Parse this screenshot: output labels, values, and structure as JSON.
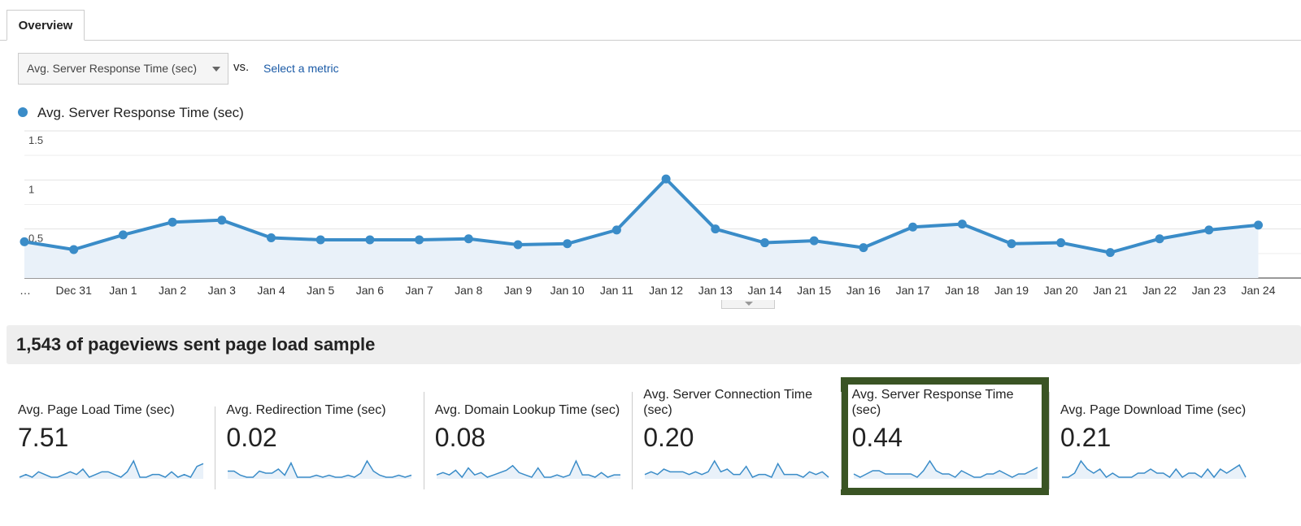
{
  "tabs": [
    "Overview"
  ],
  "metric_selector": {
    "selected": "Avg. Server Response Time (sec)",
    "vs": "vs.",
    "link": "Select a metric"
  },
  "chart_data": {
    "type": "line",
    "categories": [
      "…",
      "Dec 31",
      "Jan 1",
      "Jan 2",
      "Jan 3",
      "Jan 4",
      "Jan 5",
      "Jan 6",
      "Jan 7",
      "Jan 8",
      "Jan 9",
      "Jan 10",
      "Jan 11",
      "Jan 12",
      "Jan 13",
      "Jan 14",
      "Jan 15",
      "Jan 16",
      "Jan 17",
      "Jan 18",
      "Jan 19",
      "Jan 20",
      "Jan 21",
      "Jan 22",
      "Jan 23",
      "Jan 24"
    ],
    "series": [
      {
        "name": "Avg. Server Response Time (sec)",
        "color": "#3a8cc8",
        "values": [
          0.37,
          0.29,
          0.44,
          0.57,
          0.59,
          0.41,
          0.39,
          0.39,
          0.39,
          0.4,
          0.34,
          0.35,
          0.49,
          1.01,
          0.5,
          0.36,
          0.38,
          0.31,
          0.52,
          0.55,
          0.35,
          0.36,
          0.26,
          0.4,
          0.49,
          0.54
        ]
      }
    ],
    "ylim": [
      0,
      1.5
    ],
    "yticks": [
      0.5,
      1,
      1.5
    ],
    "minor_yticks": [
      0.25,
      0.75,
      1.25
    ],
    "grid": true
  },
  "summary": {
    "title": "1,543 of pageviews sent page load sample"
  },
  "metrics": [
    {
      "label": "Avg. Page Load Time (sec)",
      "value": "7.51",
      "sparkline": [
        3,
        4,
        3,
        5,
        4,
        3,
        3,
        4,
        5,
        4,
        6,
        3,
        4,
        5,
        5,
        4,
        3,
        5,
        9,
        3,
        3,
        4,
        4,
        3,
        5,
        3,
        4,
        3,
        7,
        8
      ]
    },
    {
      "label": "Avg. Redirection Time (sec)",
      "value": "0.02",
      "sparkline": [
        4,
        4,
        2,
        1,
        1,
        4,
        3,
        3,
        5,
        2,
        8,
        1,
        1,
        1,
        2,
        1,
        2,
        1,
        1,
        2,
        1,
        3,
        9,
        4,
        2,
        1,
        1,
        2,
        1,
        2
      ]
    },
    {
      "label": "Avg. Domain Lookup Time (sec)",
      "value": "0.08",
      "sparkline": [
        3,
        4,
        3,
        5,
        2,
        6,
        3,
        4,
        2,
        3,
        4,
        5,
        7,
        4,
        3,
        2,
        6,
        2,
        2,
        3,
        2,
        3,
        9,
        3,
        3,
        2,
        4,
        2,
        3,
        3
      ]
    },
    {
      "label": "Avg. Server Connection Time (sec)",
      "value": "0.20",
      "sparkline": [
        3,
        4,
        3,
        5,
        4,
        4,
        4,
        3,
        4,
        3,
        4,
        8,
        4,
        5,
        3,
        3,
        6,
        2,
        3,
        3,
        2,
        7,
        3,
        3,
        3,
        2,
        4,
        3,
        4,
        2
      ]
    },
    {
      "label": "Avg. Server Response Time (sec)",
      "value": "0.44",
      "sparkline": [
        3,
        2,
        3,
        4,
        4,
        3,
        3,
        3,
        3,
        3,
        2,
        4,
        7,
        4,
        3,
        3,
        2,
        4,
        3,
        2,
        2,
        3,
        3,
        4,
        3,
        2,
        3,
        3,
        4,
        5
      ]
    },
    {
      "label": "Avg. Page Download Time (sec)",
      "value": "0.21",
      "sparkline": [
        3,
        3,
        4,
        7,
        5,
        4,
        5,
        3,
        4,
        3,
        3,
        3,
        4,
        4,
        5,
        4,
        4,
        3,
        5,
        3,
        4,
        4,
        3,
        5,
        3,
        5,
        4,
        5,
        6,
        3
      ]
    }
  ],
  "highlighted_metric": 4
}
